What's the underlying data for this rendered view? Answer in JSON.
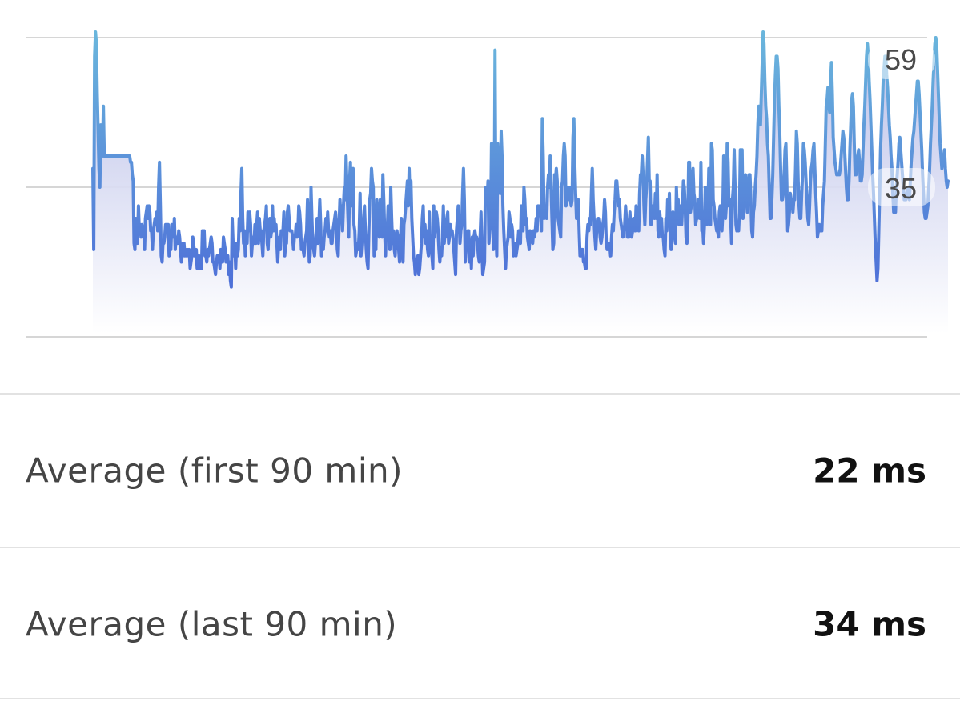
{
  "chart_data": {
    "type": "area",
    "series": [
      {
        "values": [
          38,
          25,
          56,
          61,
          58,
          50,
          44,
          38,
          35,
          45,
          42,
          40,
          48,
          40,
          40,
          40,
          40,
          40,
          40,
          40,
          40,
          40,
          40,
          40,
          40,
          40,
          40,
          40,
          40,
          40,
          40,
          40,
          40,
          40,
          40,
          40,
          40,
          40,
          40,
          40,
          40,
          40,
          40,
          39,
          39,
          37,
          36,
          26,
          25,
          30,
          29,
          26,
          32,
          28,
          29,
          27,
          29,
          28,
          28,
          25,
          30,
          31,
          32,
          30,
          32,
          31,
          28,
          28,
          25,
          28,
          29,
          30,
          29,
          31,
          28,
          35,
          39,
          32,
          24,
          23,
          26,
          26,
          27,
          29,
          29,
          29,
          29,
          24,
          25,
          25,
          29,
          28,
          27,
          30,
          25,
          27,
          27,
          26,
          28,
          27,
          25,
          23,
          24,
          26,
          26,
          24,
          25,
          24,
          25,
          24,
          25,
          22,
          23,
          24,
          27,
          26,
          24,
          24,
          25,
          22,
          22,
          24,
          22,
          23,
          22,
          28,
          26,
          28,
          24,
          24,
          23,
          25,
          24,
          25,
          26,
          27,
          26,
          23,
          23,
          22,
          21,
          23,
          24,
          23,
          24,
          22,
          25,
          25,
          23,
          27,
          26,
          25,
          23,
          24,
          24,
          21,
          23,
          20,
          19,
          30,
          26,
          24,
          26,
          22,
          26,
          24,
          25,
          30,
          28,
          34,
          38,
          30,
          26,
          28,
          24,
          27,
          26,
          31,
          28,
          31,
          29,
          24,
          26,
          27,
          26,
          29,
          26,
          29,
          31,
          26,
          30,
          28,
          28,
          26,
          24,
          28,
          29,
          30,
          32,
          26,
          25,
          29,
          30,
          27,
          28,
          32,
          28,
          30,
          28,
          29,
          26,
          23,
          26,
          27,
          25,
          28,
          28,
          28,
          31,
          24,
          26,
          26,
          31,
          32,
          30,
          28,
          28,
          28,
          27,
          25,
          27,
          27,
          29,
          27,
          28,
          32,
          31,
          29,
          25,
          26,
          25,
          24,
          26,
          27,
          28,
          33,
          28,
          23,
          24,
          35,
          30,
          26,
          25,
          24,
          26,
          28,
          30,
          26,
          29,
          33,
          29,
          24,
          26,
          25,
          27,
          28,
          30,
          28,
          31,
          28,
          27,
          28,
          26,
          26,
          28,
          29,
          30,
          31,
          29,
          25,
          24,
          29,
          33,
          30,
          32,
          28,
          32,
          35,
          33,
          40,
          35,
          31,
          27,
          36,
          39,
          32,
          34,
          38,
          29,
          28,
          24,
          25,
          26,
          25,
          28,
          34,
          24,
          26,
          29,
          30,
          32,
          28,
          25,
          23,
          22,
          28,
          33,
          34,
          38,
          36,
          35,
          24,
          26,
          25,
          33,
          31,
          29,
          27,
          33,
          30,
          27,
          37,
          33,
          28,
          24,
          29,
          28,
          32,
          27,
          25,
          35,
          30,
          26,
          28,
          25,
          24,
          27,
          28,
          27,
          25,
          23,
          26,
          30,
          25,
          23,
          29,
          30,
          32,
          34,
          36,
          32,
          38,
          33,
          36,
          30,
          27,
          24,
          23,
          21,
          23,
          22,
          24,
          21,
          22,
          24,
          26,
          30,
          32,
          27,
          29,
          26,
          28,
          25,
          24,
          31,
          26,
          25,
          24,
          22,
          32,
          27,
          29,
          31,
          30,
          28,
          25,
          23,
          25,
          24,
          27,
          32,
          26,
          28,
          27,
          30,
          31,
          26,
          27,
          29,
          28,
          28,
          27,
          25,
          23,
          21,
          28,
          30,
          32,
          30,
          26,
          28,
          29,
          34,
          38,
          33,
          23,
          25,
          26,
          28,
          28,
          23,
          26,
          22,
          27,
          24,
          27,
          28,
          27,
          27,
          26,
          24,
          23,
          27,
          31,
          25,
          21,
          22,
          23,
          35,
          34,
          33,
          36,
          26,
          28,
          29,
          42,
          42,
          25,
          26,
          57,
          28,
          24,
          42,
          38,
          40,
          34,
          44,
          40,
          32,
          28,
          25,
          22,
          25,
          26,
          27,
          31,
          30,
          27,
          29,
          28,
          24,
          26,
          25,
          24,
          25,
          26,
          28,
          27,
          26,
          32,
          31,
          28,
          35,
          33,
          29,
          30,
          27,
          26,
          25,
          28,
          27,
          27,
          26,
          28,
          27,
          28,
          30,
          28,
          32,
          32,
          31,
          31,
          28,
          46,
          40,
          30,
          31,
          32,
          30,
          35,
          37,
          35,
          40,
          35,
          30,
          25,
          26,
          37,
          36,
          38,
          36,
          30,
          29,
          28,
          27,
          35,
          36,
          40,
          42,
          40,
          32,
          33,
          33,
          35,
          35,
          33,
          32,
          33,
          43,
          46,
          39,
          34,
          30,
          32,
          33,
          28,
          24,
          24,
          25,
          25,
          23,
          23,
          22,
          22,
          27,
          29,
          28,
          30,
          29,
          34,
          38,
          33,
          30,
          27,
          25,
          28,
          29,
          30,
          29,
          27,
          26,
          27,
          29,
          30,
          33,
          31,
          26,
          25,
          25,
          26,
          24,
          24,
          27,
          29,
          28,
          31,
          33,
          36,
          36,
          34,
          32,
          33,
          30,
          29,
          28,
          27,
          28,
          29,
          32,
          30,
          27,
          27,
          27,
          31,
          28,
          27,
          28,
          30,
          29,
          28,
          32,
          31,
          30,
          28,
          34,
          37,
          37,
          40,
          37,
          32,
          29,
          33,
          35,
          39,
          43,
          36,
          36,
          29,
          30,
          32,
          32,
          30,
          34,
          30,
          37,
          28,
          27,
          31,
          29,
          30,
          27,
          27,
          25,
          24,
          30,
          28,
          33,
          30,
          34,
          27,
          25,
          28,
          31,
          28,
          27,
          26,
          35,
          31,
          33,
          29,
          32,
          31,
          29,
          32,
          36,
          35,
          32,
          27,
          26,
          29,
          39,
          39,
          31,
          32,
          36,
          38,
          34,
          33,
          29,
          30,
          30,
          33,
          32,
          30,
          39,
          28,
          29,
          26,
          29,
          35,
          33,
          29,
          31,
          38,
          35,
          29,
          42,
          41,
          33,
          32,
          30,
          29,
          28,
          28,
          27,
          31,
          32,
          32,
          28,
          31,
          40,
          35,
          30,
          32,
          42,
          39,
          32,
          33,
          30,
          26,
          33,
          35,
          41,
          35,
          29,
          28,
          29,
          28,
          31,
          41,
          37,
          41,
          30,
          31,
          36,
          37,
          35,
          31,
          34,
          37,
          37,
          33,
          28,
          27,
          31,
          32,
          35,
          37,
          40,
          45,
          48,
          48,
          45,
          50,
          55,
          60,
          58,
          52,
          48,
          46,
          42,
          40,
          35,
          30,
          30,
          33,
          37,
          43,
          49,
          53,
          56,
          56,
          54,
          48,
          44,
          38,
          33,
          33,
          34,
          37,
          41,
          42,
          36,
          28,
          29,
          31,
          34,
          33,
          33,
          31,
          33,
          33,
          38,
          44,
          42,
          36,
          32,
          30,
          30,
          34,
          37,
          42,
          41,
          39,
          36,
          33,
          30,
          29,
          32,
          36,
          38,
          39,
          41,
          42,
          38,
          34,
          31,
          27,
          28,
          29,
          28,
          28,
          28,
          32,
          34,
          36,
          42,
          48,
          49,
          51,
          48,
          47,
          52,
          55,
          50,
          43,
          41,
          39,
          38,
          37,
          37,
          37,
          37,
          38,
          40,
          42,
          44,
          43,
          41,
          38,
          35,
          33,
          33,
          36,
          41,
          45,
          49,
          50,
          48,
          42,
          37,
          37,
          38,
          40,
          41,
          39,
          36,
          36,
          37,
          41,
          45,
          48,
          52,
          56,
          58,
          56,
          52,
          49,
          45,
          41,
          37,
          34,
          30,
          26,
          23,
          20,
          22,
          28,
          34,
          41,
          45,
          48,
          52,
          54,
          56,
          56,
          53,
          51,
          48,
          45,
          43,
          40,
          38,
          34,
          31,
          31,
          31,
          35,
          37,
          39,
          42,
          43,
          41,
          39,
          37,
          35,
          33,
          33,
          33,
          34,
          35,
          34,
          33,
          36,
          39,
          41,
          43,
          44,
          46,
          48,
          50,
          52,
          52,
          50,
          47,
          44,
          41,
          37,
          34,
          31,
          30,
          30,
          31,
          32,
          35,
          38,
          42,
          45,
          48,
          52,
          55,
          58,
          59,
          58,
          54,
          50,
          46,
          42,
          40,
          38,
          39,
          40,
          41,
          38,
          36,
          35,
          36
        ]
      }
    ],
    "y_ticks": [
      59,
      35
    ],
    "grid": true
  },
  "stats": [
    {
      "label": "Average (first 90 min)",
      "value": "22 ms"
    },
    {
      "label": "Average (last 90 min)",
      "value": "34 ms"
    }
  ],
  "colors": {
    "line_top": "#6ab6dc",
    "line_bottom": "#4e70d8",
    "fill_top": "#b3b9e6",
    "fill_bottom": "#ffffff",
    "grid": "#d6d6d6",
    "divider": "#e2e2e2"
  }
}
